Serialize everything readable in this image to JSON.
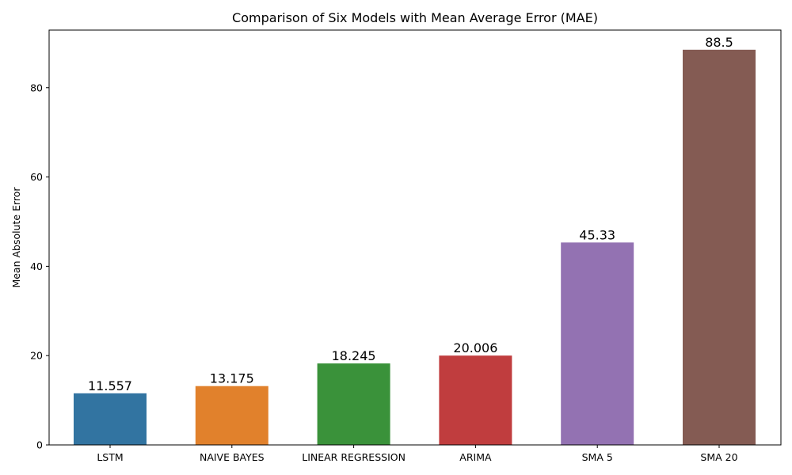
{
  "chart_data": {
    "type": "bar",
    "title": "Comparison of Six Models with Mean Average Error (MAE)",
    "xlabel": "",
    "ylabel": "Mean Absolute Error",
    "categories": [
      "LSTM",
      "NAIVE BAYES",
      "LINEAR REGRESSION",
      "ARIMA",
      "SMA 5",
      "SMA 20"
    ],
    "values": [
      11.557,
      13.175,
      18.245,
      20.006,
      45.33,
      88.5
    ],
    "value_labels": [
      "11.557",
      "13.175",
      "18.245",
      "20.006",
      "45.33",
      "88.5"
    ],
    "colors": [
      "#3274a1",
      "#e1812c",
      "#3a923a",
      "#c03d3e",
      "#9372b2",
      "#845b53"
    ],
    "ylim": [
      0,
      92.9
    ],
    "yticks": [
      0,
      20,
      40,
      60,
      80
    ],
    "grid": false,
    "legend": "none"
  }
}
